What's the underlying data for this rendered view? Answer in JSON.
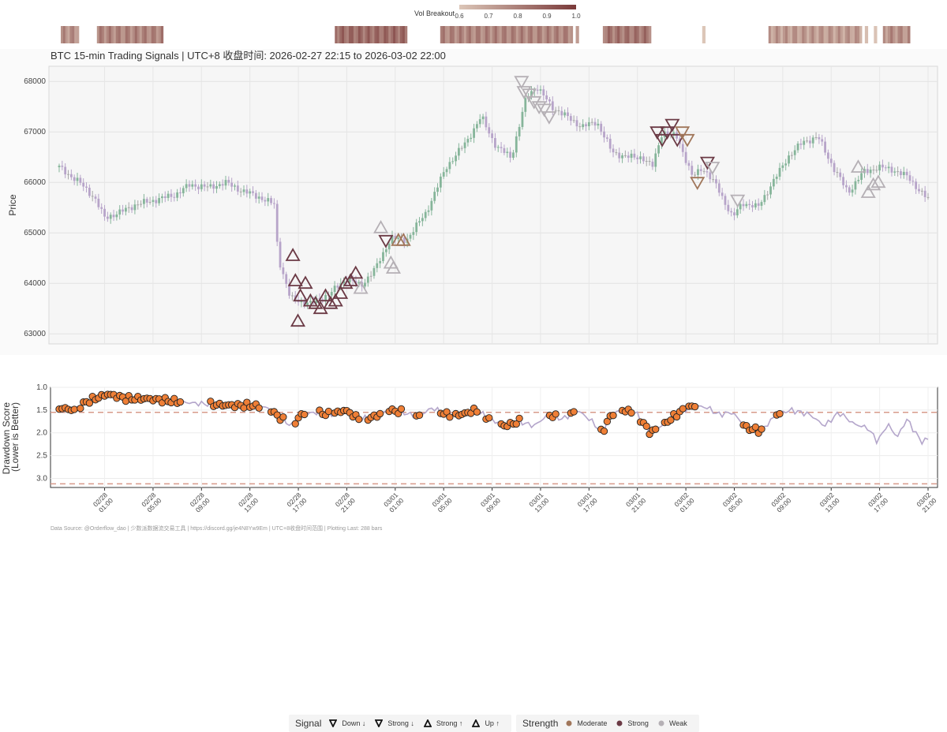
{
  "chart_data": [
    {
      "type": "heatmap",
      "role": "volume-breakout-strip",
      "colorbar": {
        "label": "Vol Breakout",
        "ticks": [
          "0.6",
          "0.7",
          "0.8",
          "0.9",
          "1.0"
        ],
        "range": [
          0.6,
          1.0
        ],
        "colors": [
          "#dcc6b8",
          "#7a3a3a"
        ]
      },
      "segments": [
        {
          "start": 0,
          "end": 6,
          "value": 0.75
        },
        {
          "start": 12,
          "end": 34,
          "value": 0.78
        },
        {
          "start": 91,
          "end": 115,
          "value": 0.85
        },
        {
          "start": 126,
          "end": 170,
          "value": 0.78
        },
        {
          "start": 171,
          "end": 172,
          "value": 0.65
        },
        {
          "start": 180,
          "end": 196,
          "value": 0.82
        },
        {
          "start": 213,
          "end": 214,
          "value": 0.62
        },
        {
          "start": 235,
          "end": 266,
          "value": 0.72
        },
        {
          "start": 267,
          "end": 268,
          "value": 0.62
        },
        {
          "start": 270,
          "end": 271,
          "value": 0.62
        },
        {
          "start": 273,
          "end": 282,
          "value": 0.75
        }
      ]
    },
    {
      "type": "candlestick",
      "title": "BTC 15-min Trading Signals | UTC+8 收盘时间: 2026-02-27 22:15 to 2026-03-02 22:00",
      "ylabel": "Price",
      "ylim": [
        62800,
        68300
      ],
      "yticks": [
        "63000",
        "64000",
        "65000",
        "66000",
        "67000",
        "68000"
      ],
      "bars": 288,
      "anchors": [
        [
          0,
          66300
        ],
        [
          8,
          66000
        ],
        [
          14,
          65700
        ],
        [
          18,
          65300
        ],
        [
          24,
          65400
        ],
        [
          30,
          65550
        ],
        [
          38,
          65650
        ],
        [
          46,
          65750
        ],
        [
          52,
          65950
        ],
        [
          60,
          65900
        ],
        [
          66,
          66000
        ],
        [
          72,
          65850
        ],
        [
          80,
          65700
        ],
        [
          86,
          65550
        ],
        [
          87,
          64550
        ],
        [
          92,
          63700
        ],
        [
          100,
          63600
        ],
        [
          108,
          63800
        ],
        [
          114,
          64100
        ],
        [
          120,
          63950
        ],
        [
          126,
          64300
        ],
        [
          132,
          64900
        ],
        [
          138,
          64850
        ],
        [
          146,
          65400
        ],
        [
          154,
          66300
        ],
        [
          162,
          66800
        ],
        [
          168,
          67300
        ],
        [
          174,
          66700
        ],
        [
          180,
          66500
        ],
        [
          186,
          67700
        ],
        [
          190,
          67900
        ],
        [
          196,
          67500
        ],
        [
          202,
          67300
        ],
        [
          208,
          67100
        ],
        [
          214,
          67200
        ],
        [
          220,
          66600
        ],
        [
          226,
          66500
        ],
        [
          232,
          66500
        ],
        [
          236,
          66300
        ],
        [
          240,
          67000
        ],
        [
          246,
          66900
        ],
        [
          252,
          66100
        ],
        [
          256,
          66300
        ],
        [
          262,
          65900
        ],
        [
          268,
          65300
        ],
        [
          272,
          65600
        ],
        [
          278,
          65500
        ],
        [
          284,
          66000
        ],
        [
          290,
          66500
        ],
        [
          296,
          66800
        ],
        [
          302,
          66900
        ],
        [
          308,
          66300
        ],
        [
          314,
          65800
        ],
        [
          320,
          66200
        ],
        [
          326,
          66300
        ],
        [
          332,
          66250
        ],
        [
          338,
          66100
        ],
        [
          343,
          65800
        ],
        [
          347,
          65600
        ]
      ],
      "signals": [
        {
          "x": 93,
          "y": 64550,
          "dir": "up",
          "strength": "Strong"
        },
        {
          "x": 94,
          "y": 64050,
          "dir": "up",
          "strength": "Strong"
        },
        {
          "x": 95,
          "y": 63250,
          "dir": "up",
          "strength": "Strong"
        },
        {
          "x": 96,
          "y": 63750,
          "dir": "up",
          "strength": "Strong"
        },
        {
          "x": 98,
          "y": 64000,
          "dir": "up",
          "strength": "Strong"
        },
        {
          "x": 100,
          "y": 63650,
          "dir": "up",
          "strength": "Strong"
        },
        {
          "x": 102,
          "y": 63600,
          "dir": "up",
          "strength": "Strong"
        },
        {
          "x": 104,
          "y": 63500,
          "dir": "up",
          "strength": "Strong"
        },
        {
          "x": 106,
          "y": 63750,
          "dir": "up",
          "strength": "Strong"
        },
        {
          "x": 108,
          "y": 63600,
          "dir": "up",
          "strength": "Strong"
        },
        {
          "x": 110,
          "y": 63650,
          "dir": "up",
          "strength": "Strong"
        },
        {
          "x": 112,
          "y": 63800,
          "dir": "up",
          "strength": "Strong"
        },
        {
          "x": 114,
          "y": 64000,
          "dir": "up",
          "strength": "Strong"
        },
        {
          "x": 116,
          "y": 64050,
          "dir": "up",
          "strength": "Strong"
        },
        {
          "x": 118,
          "y": 64200,
          "dir": "up",
          "strength": "Strong"
        },
        {
          "x": 120,
          "y": 63900,
          "dir": "up",
          "strength": "Weak"
        },
        {
          "x": 128,
          "y": 65100,
          "dir": "up",
          "strength": "Weak"
        },
        {
          "x": 130,
          "y": 64850,
          "dir": "down",
          "strength": "Strong"
        },
        {
          "x": 132,
          "y": 64400,
          "dir": "up",
          "strength": "Weak"
        },
        {
          "x": 133,
          "y": 64300,
          "dir": "up",
          "strength": "Weak"
        },
        {
          "x": 135,
          "y": 64850,
          "dir": "up",
          "strength": "Moderate"
        },
        {
          "x": 137,
          "y": 64850,
          "dir": "up",
          "strength": "Moderate"
        },
        {
          "x": 184,
          "y": 68000,
          "dir": "down",
          "strength": "Weak"
        },
        {
          "x": 185,
          "y": 67800,
          "dir": "down",
          "strength": "Weak"
        },
        {
          "x": 187,
          "y": 67750,
          "dir": "down",
          "strength": "Weak"
        },
        {
          "x": 189,
          "y": 67600,
          "dir": "down",
          "strength": "Weak"
        },
        {
          "x": 191,
          "y": 67500,
          "dir": "down",
          "strength": "Weak"
        },
        {
          "x": 193,
          "y": 67450,
          "dir": "down",
          "strength": "Weak"
        },
        {
          "x": 195,
          "y": 67300,
          "dir": "down",
          "strength": "Weak"
        },
        {
          "x": 238,
          "y": 67000,
          "dir": "down",
          "strength": "Strong"
        },
        {
          "x": 240,
          "y": 66850,
          "dir": "down",
          "strength": "Strong"
        },
        {
          "x": 242,
          "y": 67000,
          "dir": "down",
          "strength": "Strong"
        },
        {
          "x": 244,
          "y": 67150,
          "dir": "down",
          "strength": "Strong"
        },
        {
          "x": 246,
          "y": 66850,
          "dir": "down",
          "strength": "Strong"
        },
        {
          "x": 248,
          "y": 67000,
          "dir": "down",
          "strength": "Moderate"
        },
        {
          "x": 250,
          "y": 66850,
          "dir": "down",
          "strength": "Moderate"
        },
        {
          "x": 254,
          "y": 66000,
          "dir": "down",
          "strength": "Moderate"
        },
        {
          "x": 258,
          "y": 66400,
          "dir": "down",
          "strength": "Strong"
        },
        {
          "x": 260,
          "y": 66300,
          "dir": "down",
          "strength": "Weak"
        },
        {
          "x": 270,
          "y": 65650,
          "dir": "down",
          "strength": "Weak"
        },
        {
          "x": 318,
          "y": 66300,
          "dir": "up",
          "strength": "Weak"
        },
        {
          "x": 322,
          "y": 65800,
          "dir": "up",
          "strength": "Weak"
        },
        {
          "x": 324,
          "y": 65950,
          "dir": "up",
          "strength": "Weak"
        },
        {
          "x": 326,
          "y": 66000,
          "dir": "up",
          "strength": "Weak"
        }
      ]
    },
    {
      "type": "line",
      "ylabel": "Drawdown Score\n(Lower is Better)",
      "ylim": [
        1.0,
        3.2
      ],
      "yticks": [
        "1.0",
        "1.5",
        "2.0",
        "2.5",
        "3.0"
      ],
      "thresholds": [
        1.55,
        3.12
      ],
      "anchors": [
        [
          0,
          1.45
        ],
        [
          6,
          1.5
        ],
        [
          12,
          1.3
        ],
        [
          20,
          1.15
        ],
        [
          28,
          1.25
        ],
        [
          36,
          1.25
        ],
        [
          46,
          1.3
        ],
        [
          56,
          1.35
        ],
        [
          64,
          1.38
        ],
        [
          72,
          1.4
        ],
        [
          80,
          1.4
        ],
        [
          86,
          1.45
        ],
        [
          92,
          1.7
        ],
        [
          96,
          1.85
        ],
        [
          100,
          1.6
        ],
        [
          106,
          1.55
        ],
        [
          112,
          1.6
        ],
        [
          118,
          1.5
        ],
        [
          124,
          1.7
        ],
        [
          130,
          1.65
        ],
        [
          136,
          1.5
        ],
        [
          142,
          1.55
        ],
        [
          148,
          1.65
        ],
        [
          154,
          1.45
        ],
        [
          160,
          1.6
        ],
        [
          166,
          1.6
        ],
        [
          172,
          1.5
        ],
        [
          178,
          1.7
        ],
        [
          184,
          1.85
        ],
        [
          190,
          1.75
        ],
        [
          196,
          1.85
        ],
        [
          202,
          1.6
        ],
        [
          208,
          1.7
        ],
        [
          214,
          1.5
        ],
        [
          220,
          1.75
        ],
        [
          224,
          2.0
        ],
        [
          228,
          1.6
        ],
        [
          232,
          1.5
        ],
        [
          238,
          1.55
        ],
        [
          244,
          2.0
        ],
        [
          250,
          1.8
        ],
        [
          256,
          1.55
        ],
        [
          262,
          1.4
        ],
        [
          268,
          1.45
        ],
        [
          272,
          1.6
        ],
        [
          278,
          1.55
        ],
        [
          284,
          1.9
        ],
        [
          290,
          1.95
        ],
        [
          296,
          1.6
        ],
        [
          302,
          1.5
        ],
        [
          306,
          1.55
        ],
        [
          310,
          1.6
        ],
        [
          316,
          1.85
        ],
        [
          322,
          1.55
        ],
        [
          328,
          1.8
        ],
        [
          334,
          1.9
        ],
        [
          338,
          2.2
        ],
        [
          342,
          1.8
        ],
        [
          346,
          2.1
        ],
        [
          350,
          1.7
        ],
        [
          356,
          2.2
        ],
        [
          360,
          2.1
        ]
      ],
      "dots": [
        [
          0,
          6
        ],
        [
          9,
          36
        ],
        [
          37,
          42
        ],
        [
          44,
          50
        ],
        [
          62,
          82
        ],
        [
          88,
          92
        ],
        [
          98,
          101
        ],
        [
          108,
          111
        ],
        [
          114,
          124
        ],
        [
          128,
          132
        ],
        [
          136,
          141
        ],
        [
          148,
          149
        ],
        [
          158,
          161
        ],
        [
          164,
          172
        ],
        [
          176,
          178
        ],
        [
          182,
          190
        ],
        [
          203,
          205
        ],
        [
          211,
          213
        ],
        [
          224,
          229
        ],
        [
          232,
          236
        ],
        [
          240,
          242
        ],
        [
          244,
          246
        ],
        [
          250,
          257
        ],
        [
          260,
          262
        ],
        [
          282,
          290
        ],
        [
          296,
          298
        ]
      ]
    }
  ],
  "x_axis": {
    "ticks": [
      {
        "bar": 15,
        "label": "02/28\n01:00"
      },
      {
        "bar": 31,
        "label": "02/28\n05:00"
      },
      {
        "bar": 47,
        "label": "02/28\n09:00"
      },
      {
        "bar": 63,
        "label": "02/28\n13:00"
      },
      {
        "bar": 79,
        "label": "02/28\n17:00"
      },
      {
        "bar": 95,
        "label": "02/28\n21:00"
      },
      {
        "bar": 111,
        "label": "03/01\n01:00"
      },
      {
        "bar": 127,
        "label": "03/01\n05:00"
      },
      {
        "bar": 143,
        "label": "03/01\n09:00"
      },
      {
        "bar": 159,
        "label": "03/01\n13:00"
      },
      {
        "bar": 175,
        "label": "03/01\n17:00"
      },
      {
        "bar": 191,
        "label": "03/01\n21:00"
      },
      {
        "bar": 207,
        "label": "03/02\n01:00"
      },
      {
        "bar": 223,
        "label": "03/02\n05:00"
      },
      {
        "bar": 239,
        "label": "03/02\n09:00"
      },
      {
        "bar": 255,
        "label": "03/02\n13:00"
      },
      {
        "bar": 271,
        "label": "03/02\n17:00"
      },
      {
        "bar": 287,
        "label": "03/02\n21:00"
      }
    ]
  },
  "legend": {
    "signal_title": "Signal",
    "signal_items": [
      {
        "label": "Down ↓",
        "shape": "down"
      },
      {
        "label": "Strong ↓",
        "shape": "down"
      },
      {
        "label": "Strong ↑",
        "shape": "up"
      },
      {
        "label": "Up ↑",
        "shape": "up"
      }
    ],
    "strength_title": "Strength",
    "strength_items": [
      {
        "label": "Moderate",
        "color": "#a0765a"
      },
      {
        "label": "Strong",
        "color": "#6b3a45"
      },
      {
        "label": "Weak",
        "color": "#b5b0b5"
      }
    ]
  },
  "colors": {
    "up_candle": "#86b59a",
    "down_candle": "#b7a4c9",
    "neutral_candle": "#a7a7a7",
    "dd_line": "#b4a6cb",
    "dd_dot": "#ef7f36",
    "threshold": "#d79a8a"
  },
  "footer": "Data Source: @Orderflow_dao | 少数派数据流交易工具 | https://discord.gg/je4N8Yw9Em | UTC+8收盘时间范围 | Plotting Last: 288 bars"
}
